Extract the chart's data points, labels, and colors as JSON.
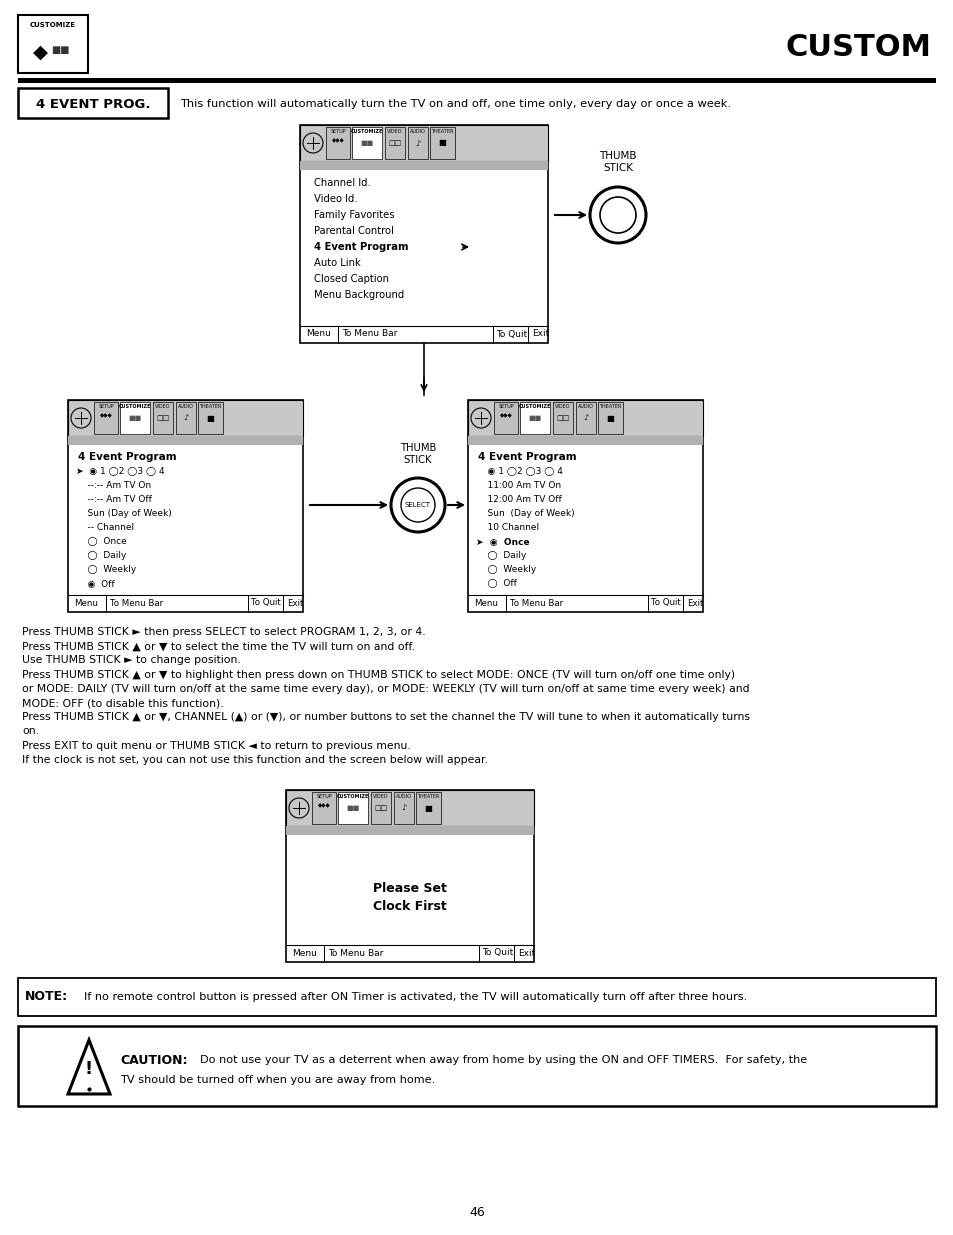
{
  "title": "CUSTOM",
  "page_num": "46",
  "section_label": "4 EVENT PROG.",
  "section_desc": "This function will automatically turn the TV on and off, one time only, every day or once a week.",
  "menu1_items": [
    "Channel Id.",
    "Video Id.",
    "Family Favorites",
    "Parental Control",
    "4 Event Program",
    "Auto Link",
    "Closed Caption",
    "Menu Background"
  ],
  "menu1_bold": "4 Event Program",
  "menu2_title": "4 Event Program",
  "menu2_items": [
    [
      true,
      "➤  ◉ 1 ◯2 ◯3 ◯ 4"
    ],
    [
      false,
      "    --:-- Am TV On"
    ],
    [
      false,
      "    --:-- Am TV Off"
    ],
    [
      false,
      "    Sun (Day of Week)"
    ],
    [
      false,
      "    -- Channel"
    ],
    [
      false,
      "    ◯  Once"
    ],
    [
      false,
      "    ◯  Daily"
    ],
    [
      false,
      "    ◯  Weekly"
    ],
    [
      false,
      "    ◉  Off"
    ]
  ],
  "menu3_title": "4 Event Program",
  "menu3_items": [
    [
      false,
      "    ◉ 1 ◯2 ◯3 ◯ 4"
    ],
    [
      false,
      "    11:00 Am TV On"
    ],
    [
      false,
      "    12:00 Am TV Off"
    ],
    [
      false,
      "    Sun  (Day of Week)"
    ],
    [
      false,
      "    10 Channel"
    ],
    [
      true,
      "➤  ◉  Once"
    ],
    [
      false,
      "    ◯  Daily"
    ],
    [
      false,
      "    ◯  Weekly"
    ],
    [
      false,
      "    ◯  Off"
    ]
  ],
  "menu3_bold_idx": 5,
  "menu4_text": "Please Set\nClock First",
  "body_lines": [
    "Press THUMB STICK ► then press SELECT to select PROGRAM 1, 2, 3, or 4.",
    "Press THUMB STICK ▲ or ▼ to select the time the TV will turn on and off.",
    "Use THUMB STICK ► to change position.",
    "Press THUMB STICK ▲ or ▼ to highlight then press down on THUMB STICK to select MODE: ONCE (TV will turn on/off one time only)",
    "or MODE: DAILY (TV will turn on/off at the same time every day), or MODE: WEEKLY (TV will turn on/off at same time every week) and",
    "MODE: OFF (to disable this function).",
    "Press THUMB STICK ▲ or ▼, CHANNEL (▲) or (▼), or number buttons to set the channel the TV will tune to when it automatically turns",
    "on.",
    "Press EXIT to quit menu or THUMB STICK ◄ to return to previous menu.",
    "If the clock is not set, you can not use this function and the screen below will appear."
  ],
  "note_text": "If no remote control button is pressed after ON Timer is activated, the TV will automatically turn off after three hours.",
  "caution_line1": "Do not use your TV as a deterrent when away from home by using the ON and OFF TIMERS.  For safety, the",
  "caution_line2": "TV should be turned off when you are away from home.",
  "tabs": [
    "SETUP",
    "CUSTOMIZE",
    "VIDEO",
    "AUDIO",
    "THEATER"
  ]
}
